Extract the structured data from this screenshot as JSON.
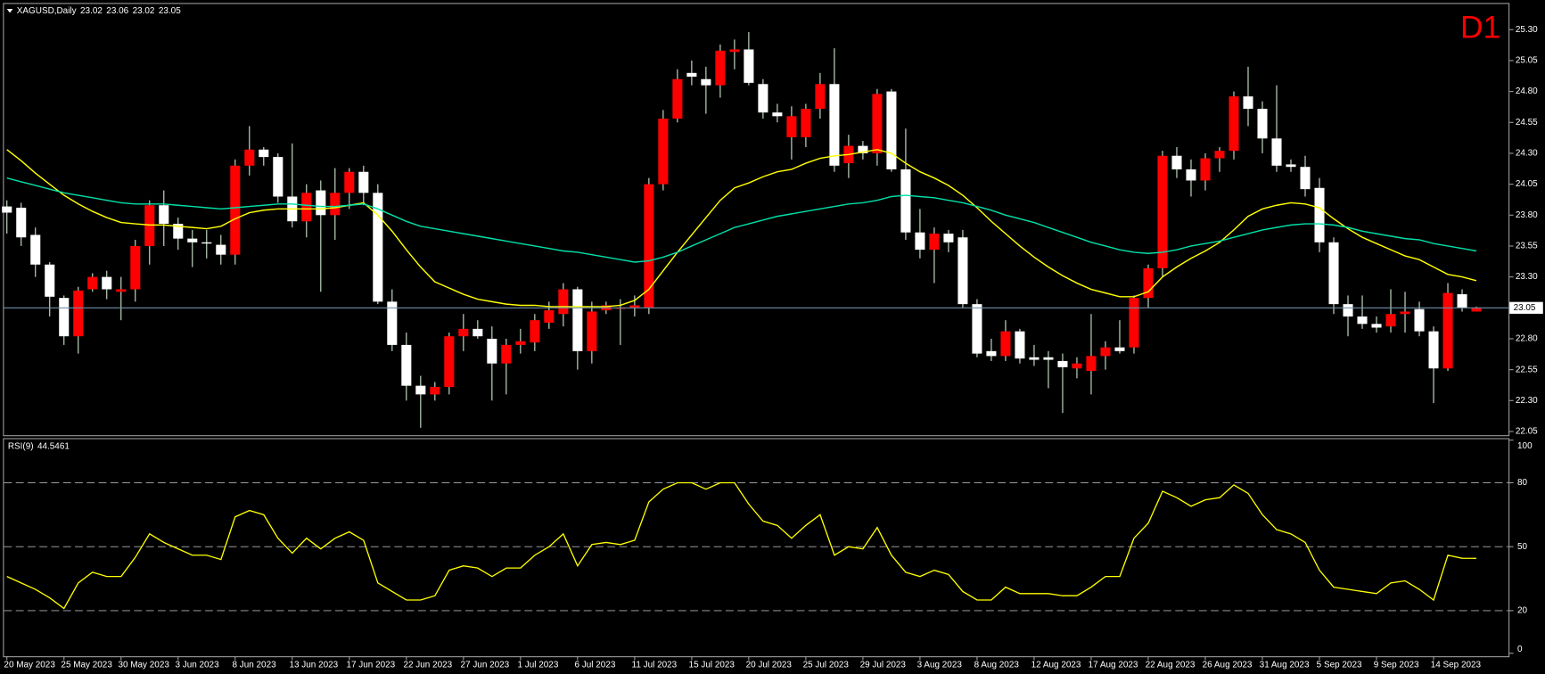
{
  "chart_data": [
    {
      "type": "candlestick",
      "symbol_label": "XAGUSD,Daily",
      "badge": "D1",
      "categories": [
        "20 May 2023",
        null,
        null,
        null,
        "25 May 2023",
        null,
        null,
        null,
        "30 May 2023",
        null,
        null,
        null,
        "3 Jun 2023",
        null,
        null,
        null,
        "8 Jun 2023",
        null,
        null,
        null,
        "13 Jun 2023",
        null,
        null,
        null,
        "17 Jun 2023",
        null,
        null,
        null,
        "22 Jun 2023",
        null,
        null,
        null,
        "27 Jun 2023",
        null,
        null,
        null,
        "1 Jul 2023",
        null,
        null,
        null,
        "6 Jul 2023",
        null,
        null,
        null,
        "11 Jul 2023",
        null,
        null,
        null,
        "15 Jul 2023",
        null,
        null,
        null,
        "20 Jul 2023",
        null,
        null,
        null,
        "25 Jul 2023",
        null,
        null,
        null,
        "29 Jul 2023",
        null,
        null,
        null,
        "3 Aug 2023",
        null,
        null,
        null,
        "8 Aug 2023",
        null,
        null,
        null,
        "12 Aug 2023",
        null,
        null,
        null,
        "17 Aug 2023",
        null,
        null,
        null,
        "22 Aug 2023",
        null,
        null,
        null,
        "26 Aug 2023",
        null,
        null,
        null,
        "31 Aug 2023",
        null,
        null,
        null,
        "5 Sep 2023",
        null,
        null,
        null,
        "9 Sep 2023",
        null,
        null,
        null,
        "14 Sep 2023",
        null,
        null,
        null
      ],
      "ohlc": {
        "open": [
          23.87,
          23.86,
          23.64,
          23.4,
          23.13,
          22.82,
          23.2,
          23.3,
          23.18,
          23.2,
          23.55,
          23.88,
          23.73,
          23.61,
          23.58,
          23.56,
          23.48,
          24.2,
          24.33,
          24.27,
          23.95,
          23.75,
          24.0,
          23.8,
          23.98,
          24.15,
          23.98,
          23.1,
          22.75,
          22.42,
          22.35,
          22.41,
          22.82,
          22.88,
          22.8,
          22.6,
          22.75,
          22.77,
          22.93,
          23.0,
          23.2,
          22.7,
          23.03,
          23.05,
          23.05,
          23.05,
          24.05,
          24.58,
          24.95,
          24.9,
          24.85,
          25.12,
          25.14,
          24.86,
          24.63,
          24.43,
          24.43,
          24.66,
          24.86,
          24.22,
          24.36,
          24.3,
          24.8,
          24.17,
          23.66,
          23.52,
          23.65,
          23.62,
          23.08,
          22.7,
          22.66,
          22.86,
          22.65,
          22.65,
          22.62,
          22.56,
          22.54,
          22.66,
          22.73,
          22.73,
          23.13,
          23.37,
          24.28,
          24.17,
          24.08,
          24.26,
          24.32,
          24.76,
          24.66,
          24.42,
          24.21,
          24.19,
          24.02,
          23.58,
          23.08,
          22.98,
          22.92,
          22.9,
          23.0,
          23.04,
          22.86,
          22.56,
          23.16,
          23.02
        ],
        "high": [
          23.92,
          23.9,
          23.7,
          23.42,
          23.15,
          23.22,
          23.33,
          23.35,
          23.3,
          23.6,
          23.92,
          24.0,
          23.78,
          23.68,
          23.68,
          23.64,
          24.25,
          24.52,
          24.35,
          24.3,
          24.38,
          24.05,
          24.08,
          24.18,
          24.18,
          24.2,
          24.05,
          23.2,
          22.85,
          22.5,
          22.45,
          22.85,
          23.0,
          22.95,
          22.9,
          22.8,
          22.88,
          23.0,
          23.1,
          23.25,
          23.22,
          23.1,
          23.1,
          23.12,
          23.15,
          24.1,
          24.65,
          24.98,
          25.05,
          25.0,
          25.18,
          25.22,
          25.28,
          24.9,
          24.7,
          24.68,
          24.7,
          24.95,
          25.15,
          24.45,
          24.4,
          24.82,
          24.82,
          24.5,
          23.85,
          23.7,
          23.68,
          23.68,
          23.12,
          22.8,
          22.95,
          22.88,
          22.75,
          22.7,
          22.68,
          22.65,
          23.0,
          22.78,
          22.95,
          23.15,
          23.4,
          24.32,
          24.35,
          24.25,
          24.3,
          24.35,
          24.8,
          25.0,
          24.72,
          24.85,
          24.25,
          24.28,
          24.1,
          23.62,
          23.15,
          23.15,
          22.98,
          23.2,
          23.18,
          23.1,
          22.9,
          23.25,
          23.2,
          23.06
        ],
        "low": [
          23.65,
          23.55,
          23.3,
          22.98,
          22.75,
          22.68,
          23.18,
          23.12,
          22.95,
          23.1,
          23.4,
          23.55,
          23.52,
          23.38,
          23.45,
          23.4,
          23.4,
          24.12,
          24.2,
          23.9,
          23.7,
          23.62,
          23.18,
          23.6,
          23.85,
          23.88,
          23.08,
          22.7,
          22.3,
          22.08,
          22.3,
          22.35,
          22.7,
          22.8,
          22.3,
          22.35,
          22.68,
          22.7,
          22.88,
          22.9,
          22.55,
          22.6,
          23.0,
          22.75,
          22.98,
          23.0,
          24.0,
          24.55,
          24.85,
          24.62,
          24.75,
          24.98,
          24.85,
          24.58,
          24.55,
          24.25,
          24.35,
          24.58,
          24.15,
          24.1,
          24.25,
          24.2,
          24.15,
          23.6,
          23.45,
          23.25,
          23.5,
          23.05,
          22.65,
          22.62,
          22.62,
          22.6,
          22.58,
          22.4,
          22.2,
          22.48,
          22.35,
          22.55,
          22.68,
          22.68,
          23.05,
          23.3,
          24.1,
          23.95,
          24.0,
          24.15,
          24.25,
          24.52,
          24.3,
          24.15,
          24.15,
          23.95,
          23.5,
          23.0,
          22.82,
          22.88,
          22.85,
          22.85,
          22.85,
          22.82,
          22.28,
          22.54,
          23.02,
          23.02
        ],
        "close": [
          23.82,
          23.62,
          23.4,
          23.14,
          22.82,
          23.19,
          23.3,
          23.2,
          23.2,
          23.55,
          23.88,
          23.73,
          23.61,
          23.58,
          23.57,
          23.48,
          24.2,
          24.33,
          24.27,
          23.95,
          23.75,
          23.98,
          23.8,
          23.98,
          24.15,
          23.98,
          23.1,
          22.75,
          22.42,
          22.35,
          22.41,
          22.82,
          22.88,
          22.82,
          22.6,
          22.75,
          22.78,
          22.95,
          23.03,
          23.2,
          22.7,
          23.02,
          23.07,
          23.05,
          23.07,
          24.05,
          24.58,
          24.9,
          24.92,
          24.85,
          25.13,
          25.14,
          24.87,
          24.63,
          24.6,
          24.6,
          24.66,
          24.86,
          24.2,
          24.36,
          24.3,
          24.78,
          24.17,
          23.66,
          23.52,
          23.65,
          23.58,
          23.08,
          22.68,
          22.66,
          22.86,
          22.64,
          22.63,
          22.63,
          22.57,
          22.6,
          22.66,
          22.73,
          22.7,
          23.13,
          23.37,
          24.28,
          24.17,
          24.08,
          24.26,
          24.32,
          24.76,
          24.66,
          24.42,
          24.2,
          24.19,
          24.01,
          23.58,
          23.08,
          22.98,
          22.92,
          22.89,
          23.0,
          23.02,
          22.86,
          22.56,
          23.17,
          23.05,
          23.05
        ]
      },
      "up_color": "#ff0000",
      "down_color": "#ffffff",
      "wick_color": "#cfe8cf",
      "overlays": [
        {
          "color": "#ffff00",
          "values": [
            24.33,
            24.24,
            24.14,
            24.05,
            23.96,
            23.89,
            23.83,
            23.78,
            23.74,
            23.73,
            23.72,
            23.72,
            23.71,
            23.7,
            23.69,
            23.71,
            23.77,
            23.82,
            23.84,
            23.85,
            23.85,
            23.85,
            23.85,
            23.86,
            23.88,
            23.9,
            23.8,
            23.67,
            23.52,
            23.38,
            23.26,
            23.21,
            23.16,
            23.12,
            23.1,
            23.08,
            23.07,
            23.07,
            23.06,
            23.06,
            23.06,
            23.06,
            23.06,
            23.07,
            23.11,
            23.2,
            23.35,
            23.5,
            23.64,
            23.78,
            23.92,
            24.02,
            24.06,
            24.11,
            24.15,
            24.17,
            24.22,
            24.26,
            24.28,
            24.29,
            24.31,
            24.33,
            24.3,
            24.22,
            24.15,
            24.1,
            24.04,
            23.96,
            23.86,
            23.75,
            23.65,
            23.55,
            23.46,
            23.38,
            23.31,
            23.25,
            23.2,
            23.17,
            23.14,
            23.14,
            23.18,
            23.3,
            23.38,
            23.45,
            23.51,
            23.58,
            23.68,
            23.79,
            23.85,
            23.88,
            23.9,
            23.89,
            23.86,
            23.77,
            23.69,
            23.62,
            23.57,
            23.52,
            23.47,
            23.44,
            23.38,
            23.32,
            23.3,
            23.27
          ]
        },
        {
          "color": "#00e0a8",
          "values": [
            24.1,
            24.07,
            24.04,
            24.01,
            23.98,
            23.96,
            23.94,
            23.92,
            23.9,
            23.89,
            23.89,
            23.89,
            23.88,
            23.87,
            23.86,
            23.85,
            23.86,
            23.87,
            23.88,
            23.89,
            23.89,
            23.88,
            23.87,
            23.87,
            23.88,
            23.89,
            23.85,
            23.8,
            23.75,
            23.71,
            23.69,
            23.67,
            23.65,
            23.63,
            23.61,
            23.59,
            23.57,
            23.55,
            23.53,
            23.51,
            23.5,
            23.48,
            23.46,
            23.44,
            23.42,
            23.43,
            23.46,
            23.5,
            23.55,
            23.6,
            23.65,
            23.7,
            23.73,
            23.76,
            23.79,
            23.81,
            23.83,
            23.85,
            23.87,
            23.89,
            23.9,
            23.92,
            23.95,
            23.96,
            23.95,
            23.94,
            23.92,
            23.9,
            23.87,
            23.84,
            23.8,
            23.77,
            23.74,
            23.7,
            23.66,
            23.62,
            23.58,
            23.55,
            23.52,
            23.5,
            23.49,
            23.5,
            23.52,
            23.55,
            23.57,
            23.59,
            23.62,
            23.65,
            23.68,
            23.7,
            23.72,
            23.73,
            23.73,
            23.72,
            23.7,
            23.67,
            23.65,
            23.63,
            23.61,
            23.6,
            23.57,
            23.55,
            23.53,
            23.51
          ]
        }
      ],
      "current_price_color": "#6f8fa8",
      "ylim": [
        22.02,
        25.5
      ],
      "yticks": [
        {
          "value": 25.3,
          "label": "25.30"
        },
        25.05,
        {
          "value": 24.8,
          "label": "24.80"
        },
        24.55,
        {
          "value": 24.3,
          "label": "24.30"
        },
        24.05,
        {
          "value": 23.8,
          "label": "23.80"
        },
        23.55,
        {
          "value": 23.3,
          "label": "23.30"
        },
        {
          "value": 22.8,
          "label": "22.80"
        },
        22.55,
        {
          "value": 22.3,
          "label": "22.30"
        },
        22.05
      ]
    },
    {
      "type": "line",
      "label": "RSI(9)",
      "color": "#ffff00",
      "values": [
        36,
        33,
        30,
        26,
        21,
        33,
        38,
        36,
        36,
        45,
        56,
        52,
        49,
        46,
        46,
        44,
        64,
        67,
        65,
        54,
        47,
        54,
        49,
        54,
        57,
        53,
        33,
        29,
        25,
        25,
        27,
        39,
        41,
        40,
        36,
        40,
        40,
        46,
        50,
        56,
        41,
        51,
        52,
        51,
        53,
        71,
        77,
        80,
        80,
        77,
        80,
        80,
        70,
        62,
        60,
        54,
        60,
        65,
        46,
        50,
        49,
        59,
        46,
        38,
        36,
        39,
        37,
        29,
        25,
        25,
        31,
        28,
        28,
        28,
        27,
        27,
        31,
        36,
        36,
        54,
        61,
        76,
        73,
        69,
        72,
        73,
        79,
        75,
        65,
        58,
        56,
        52,
        39,
        31,
        30,
        29,
        28,
        33,
        34,
        30,
        25,
        46,
        44.6,
        44.5461
      ],
      "levels": [
        20,
        50,
        80
      ],
      "ylim": [
        0,
        100
      ],
      "yticks": [
        0,
        20,
        50,
        80,
        100
      ]
    }
  ]
}
